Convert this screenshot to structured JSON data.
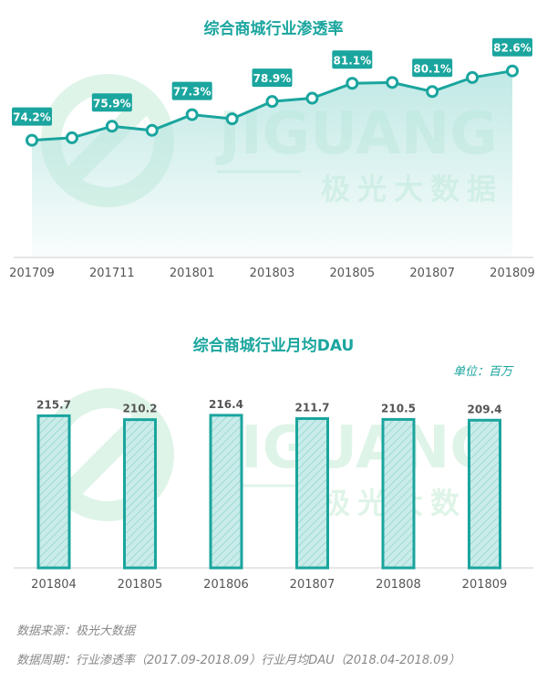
{
  "footer": {
    "source": "数据来源：极光大数据",
    "period": "数据周期：行业渗透率（2017.09-2018.09）行业月均DAU（2018.04-2018.09）"
  },
  "watermark": {
    "brand": "JIGUANG",
    "cn": "极光大数据"
  },
  "colors": {
    "teal": "#1aa59e",
    "area_top": "#b9e6e2",
    "bar_fill": "#c9ecea",
    "watermark": "#dff4e8"
  },
  "chart_data": [
    {
      "type": "line",
      "title": "综合商城行业渗透率",
      "x": [
        "201709",
        "201710",
        "201711",
        "201712",
        "201801",
        "201802",
        "201803",
        "201804",
        "201805",
        "201806",
        "201807",
        "201808",
        "201809"
      ],
      "x_tick_labels": [
        "201709",
        "201711",
        "201801",
        "201803",
        "201805",
        "201807",
        "201809"
      ],
      "values": [
        74.2,
        74.5,
        75.9,
        75.4,
        77.3,
        76.8,
        78.9,
        79.3,
        81.1,
        81.2,
        80.1,
        81.8,
        82.6
      ],
      "value_labels": [
        "74.2%",
        null,
        "75.9%",
        null,
        "77.3%",
        null,
        "78.9%",
        null,
        "81.1%",
        null,
        "80.1%",
        null,
        "82.6%"
      ],
      "unit": "%",
      "ylim": [
        60,
        85
      ],
      "grid": false
    },
    {
      "type": "bar",
      "title": "综合商城行业月均DAU",
      "unit_label": "单位：百万",
      "categories": [
        "201804",
        "201805",
        "201806",
        "201807",
        "201808",
        "201809"
      ],
      "values": [
        215.7,
        210.2,
        216.4,
        211.7,
        210.5,
        209.4
      ],
      "value_labels": [
        "215.7",
        "210.2",
        "216.4",
        "211.7",
        "210.5",
        "209.4"
      ],
      "ylim": [
        0,
        290
      ],
      "grid": false
    }
  ]
}
